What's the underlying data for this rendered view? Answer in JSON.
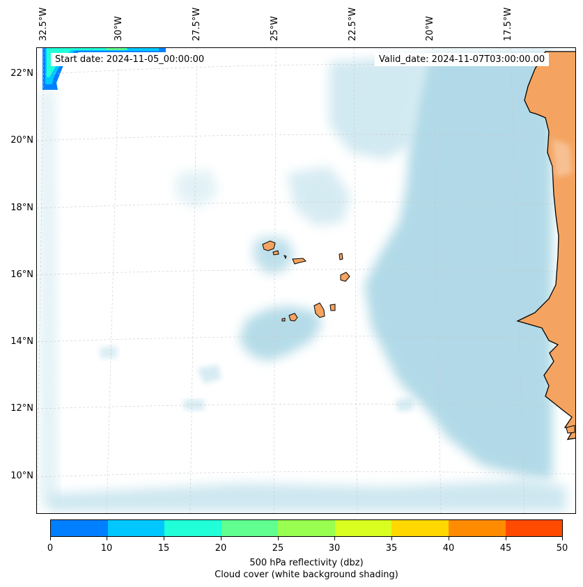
{
  "header": {
    "start_date": "Start date: 2024-11-05_00:00:00",
    "valid_date": "Valid_date: 2024-11-07T03:00:00.00"
  },
  "map": {
    "longitude_labels": [
      "32.5°W",
      "30°W",
      "27.5°W",
      "25°W",
      "22.5°W",
      "20°W",
      "17.5°W"
    ],
    "latitude_labels": [
      "22°N",
      "20°N",
      "18°N",
      "16°N",
      "14°N",
      "12°N",
      "10°N"
    ],
    "land_color": "#f4a460",
    "cloud_color": "#add8e6",
    "gridlines": "dashed"
  },
  "colorbar": {
    "ticks": [
      "0",
      "10",
      "15",
      "20",
      "25",
      "30",
      "35",
      "40",
      "45",
      "50"
    ],
    "colors": [
      "#0080ff",
      "#00c8ff",
      "#20ffd8",
      "#60ff90",
      "#98ff50",
      "#d8ff20",
      "#ffd800",
      "#ff8c00",
      "#ff4a00"
    ],
    "label_line1": "500 hPa reflectivity (dbz)",
    "label_line2": "Cloud cover (white background shading)"
  }
}
